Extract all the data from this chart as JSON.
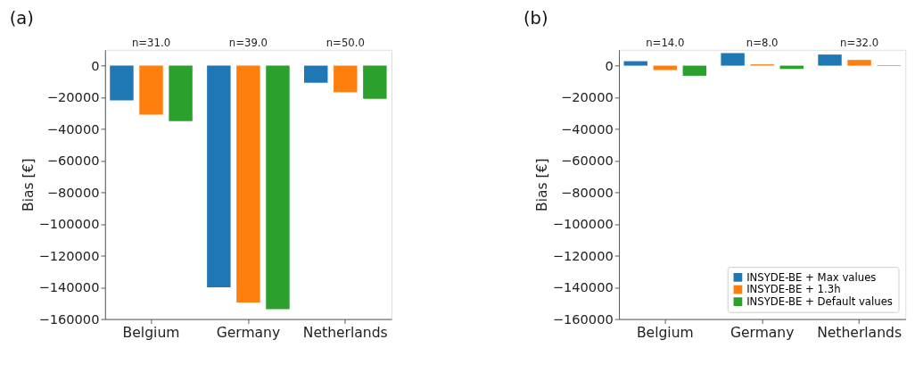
{
  "chart_data": [
    {
      "type": "bar",
      "title": "(a)",
      "ylabel": "Bias [€]",
      "categories": [
        "Belgium",
        "Germany",
        "Netherlands"
      ],
      "series": [
        {
          "color": "#1f77b4",
          "values": [
            -22000,
            -140000,
            -10800
          ]
        },
        {
          "color": "#ff7f0e",
          "values": [
            -31000,
            -149500,
            -16800
          ]
        },
        {
          "color": "#2ca02c",
          "values": [
            -35000,
            -153700,
            -21000
          ]
        }
      ],
      "ylim": [
        -160000,
        10000
      ],
      "yticks": [
        -160000,
        -140000,
        -120000,
        -100000,
        -80000,
        -60000,
        -40000,
        -20000,
        0
      ],
      "annotations": [
        "n=31.0",
        "n=39.0",
        "n=50.0"
      ]
    },
    {
      "type": "bar",
      "title": "(b)",
      "ylabel": "Bias [€]",
      "categories": [
        "Belgium",
        "Germany",
        "Netherlands"
      ],
      "series": [
        {
          "name": "INSYDE-BE + Max values",
          "color": "#1f77b4",
          "values": [
            2800,
            7900,
            7000
          ]
        },
        {
          "name": "INSYDE-BE + 1.3h",
          "color": "#ff7f0e",
          "values": [
            -2800,
            800,
            3600
          ]
        },
        {
          "name": "INSYDE-BE + Default values",
          "color": "#2ca02c",
          "values": [
            -6400,
            -2100,
            300
          ]
        }
      ],
      "ylim": [
        -160000,
        10000
      ],
      "yticks": [
        -160000,
        -140000,
        -120000,
        -100000,
        -80000,
        -60000,
        -40000,
        -20000,
        0
      ],
      "legend": "bottom right",
      "annotations": [
        "n=14.0",
        "n=8.0",
        "n=32.0"
      ]
    }
  ]
}
